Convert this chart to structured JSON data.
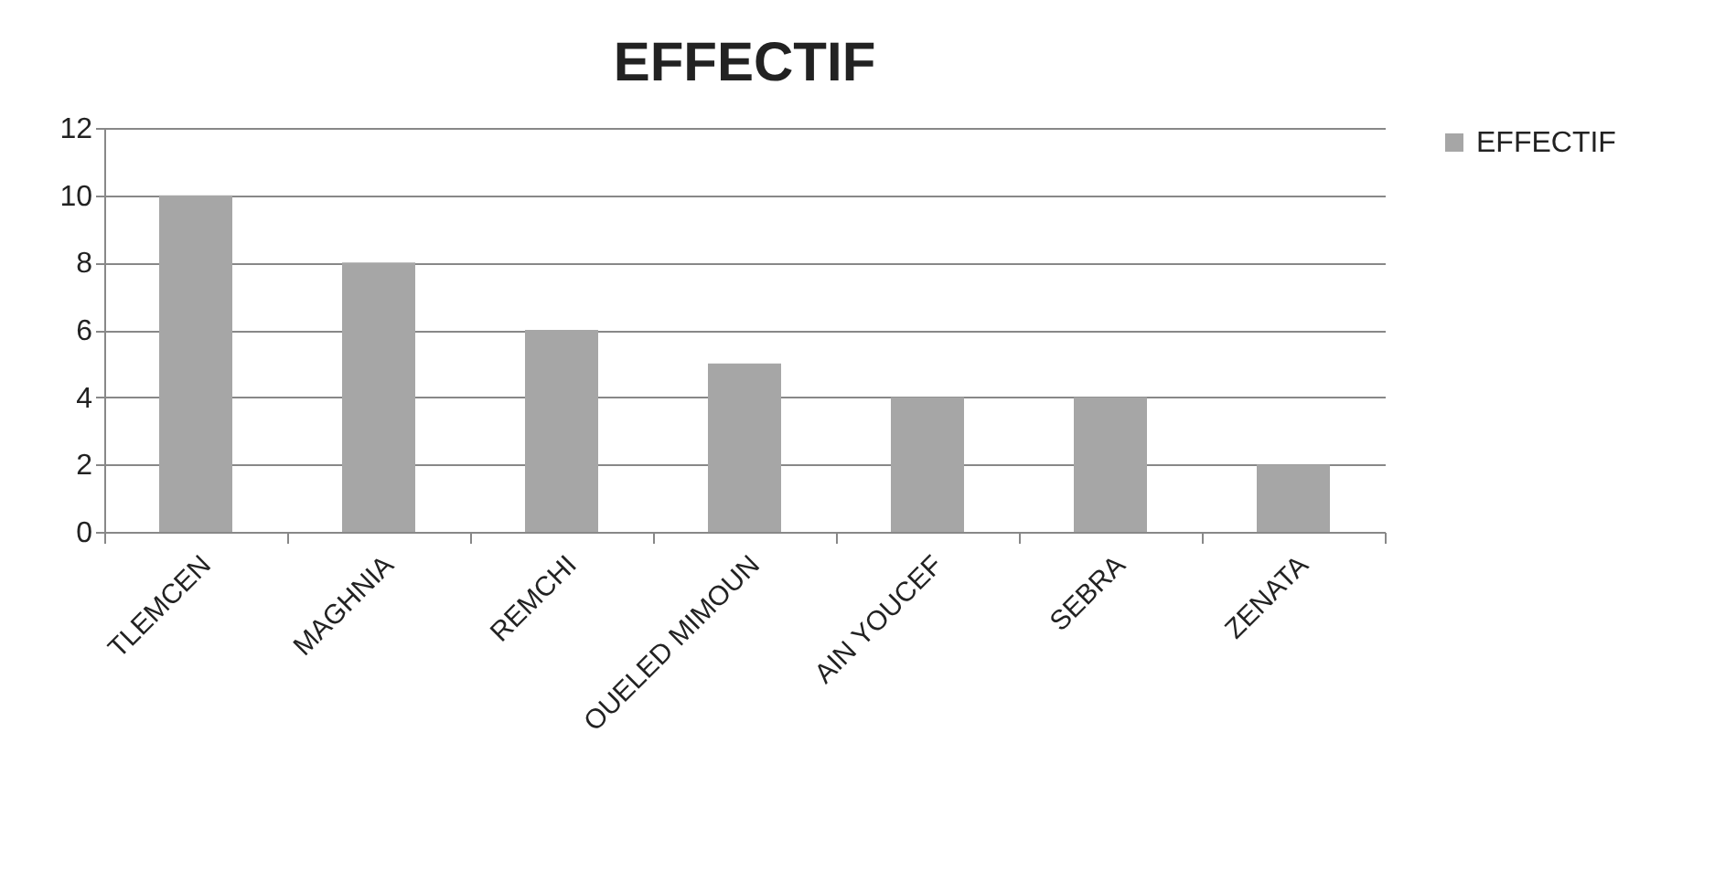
{
  "chart_data": {
    "type": "bar",
    "title": "EFFECTIF",
    "categories": [
      "TLEMCEN",
      "MAGHNIA",
      "REMCHI",
      "OUELED MIMOUN",
      "AIN YOUCEF",
      "SEBRA",
      "ZENATA"
    ],
    "series": [
      {
        "name": "EFFECTIF",
        "color": "#a6a6a6",
        "values": [
          10,
          8,
          6,
          5,
          4,
          4,
          2
        ]
      }
    ],
    "ylim": [
      0,
      12
    ],
    "yticks": [
      0,
      2,
      4,
      6,
      8,
      10,
      12
    ],
    "grid": "y",
    "legend": "right"
  }
}
